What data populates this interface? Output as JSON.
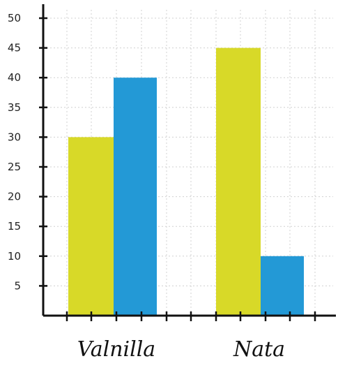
{
  "chart_data": {
    "type": "bar",
    "categories": [
      "Valnilla",
      "Nata"
    ],
    "series": [
      {
        "values": [
          30,
          45
        ],
        "color": "#d8d928"
      },
      {
        "values": [
          40,
          10
        ],
        "color": "#2399d6"
      }
    ],
    "ylim": [
      0,
      50
    ],
    "yticks": [
      5,
      10,
      15,
      20,
      25,
      30,
      35,
      40,
      45,
      50
    ],
    "grid": true,
    "grid_style": "dotted",
    "axis_color": "#111111",
    "grid_color": "#d0d0d0"
  }
}
